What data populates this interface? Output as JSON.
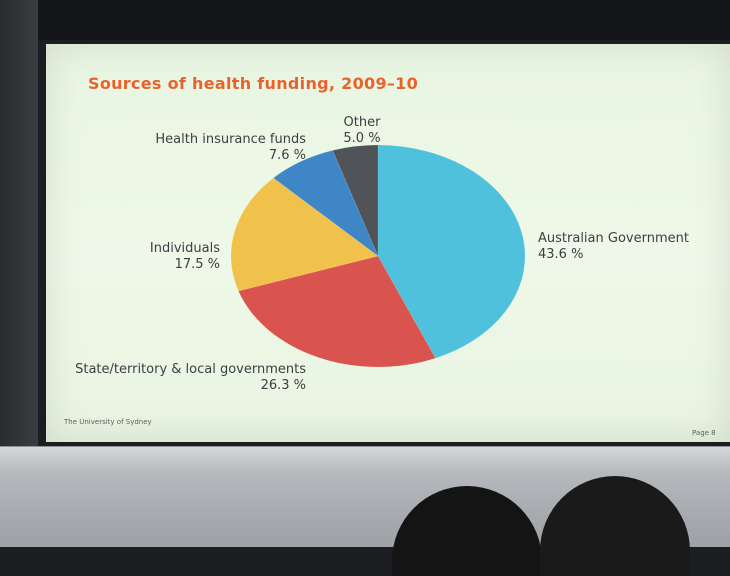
{
  "slide": {
    "footer_left": "The University of Sydney",
    "footer_right": "Page 8"
  },
  "chart_data": {
    "type": "pie",
    "title": "Sources of health funding, 2009–10",
    "slices": [
      {
        "label": "Australian Government",
        "value": 43.6,
        "value_text": "43.6 %",
        "color": "#4fc1dc"
      },
      {
        "label": "State/territory & local governments",
        "value": 26.3,
        "value_text": "26.3 %",
        "color": "#d9534f"
      },
      {
        "label": "Individuals",
        "value": 17.5,
        "value_text": "17.5 %",
        "color": "#f0c24b"
      },
      {
        "label": "Health insurance funds",
        "value": 7.6,
        "value_text": "7.6 %",
        "color": "#3f86c6"
      },
      {
        "label": "Other",
        "value": 5.0,
        "value_text": "5.0 %",
        "color": "#505357"
      }
    ],
    "start_angle_deg": 0,
    "direction": "clockwise"
  },
  "colors": {
    "title": "#e8632c",
    "slide_background": "#eaf6e4"
  }
}
